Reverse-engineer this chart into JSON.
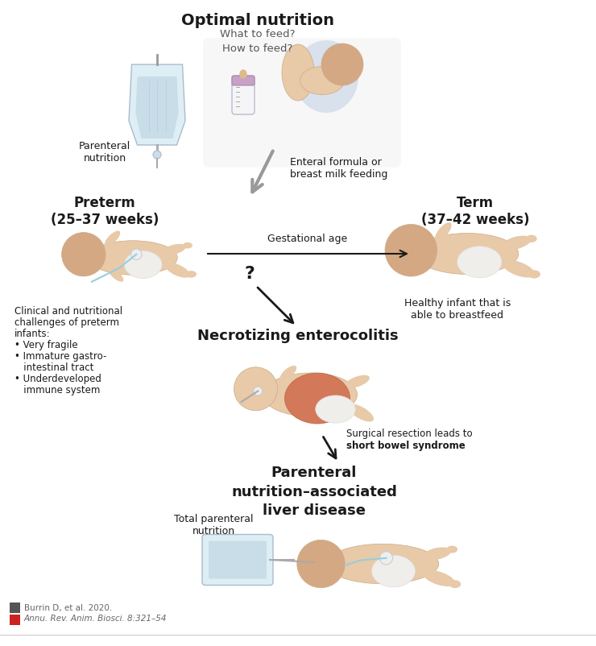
{
  "title": "Optimal nutrition",
  "subtitle": "What to feed?\nHow to feed?",
  "preterm_label": "Preterm\n(25–37 weeks)",
  "term_label": "Term\n(37–42 weeks)",
  "parenteral_label": "Parenteral\nnutrition",
  "enteral_label": "Enteral formula or\nbreast milk feeding",
  "gestational_label": "Gestational age",
  "nec_label": "Necrotizing enterocolitis",
  "healthy_label": "Healthy infant that is\nable to breastfeed",
  "clinical_line1": "Clinical and nutritional",
  "clinical_line2": "challenges of preterm",
  "clinical_line3": "infants:",
  "clinical_line4": "• Very fragile",
  "clinical_line5": "• Immature gastro-",
  "clinical_line6": "   intestinal tract",
  "clinical_line7": "• Underdeveloped",
  "clinical_line8": "   immune system",
  "surgical_normal": "Surgical resection leads to",
  "surgical_bold": "short bowel syndrome",
  "pnald_label": "Parenteral\nnutrition–associated\nliver disease",
  "tpn_label": "Total parenteral\nnutrition",
  "citation_line1": "Burrin D, et al. 2020.",
  "citation_line2": "Annu. Rev. Anim. Biosci. 8:321–54",
  "bg_color": "#ffffff",
  "text_color": "#1a1a1a",
  "gray_text": "#555555",
  "arrow_color": "#1a1a1a",
  "gray_arrow_color": "#888888",
  "skin_light": "#e8c9a8",
  "skin_mid": "#d4a882",
  "skin_dark": "#c49060",
  "diaper_color": "#f0eeeb",
  "iv_bag_color": "#ddeef5",
  "iv_liquid_color": "#c8dde8",
  "bottle_body_color": "#f5f5f8",
  "bottle_cap_color": "#c8a0c8",
  "nec_belly_color": "#d4785a",
  "logo_gray": "#555555",
  "logo_red": "#cc2222"
}
